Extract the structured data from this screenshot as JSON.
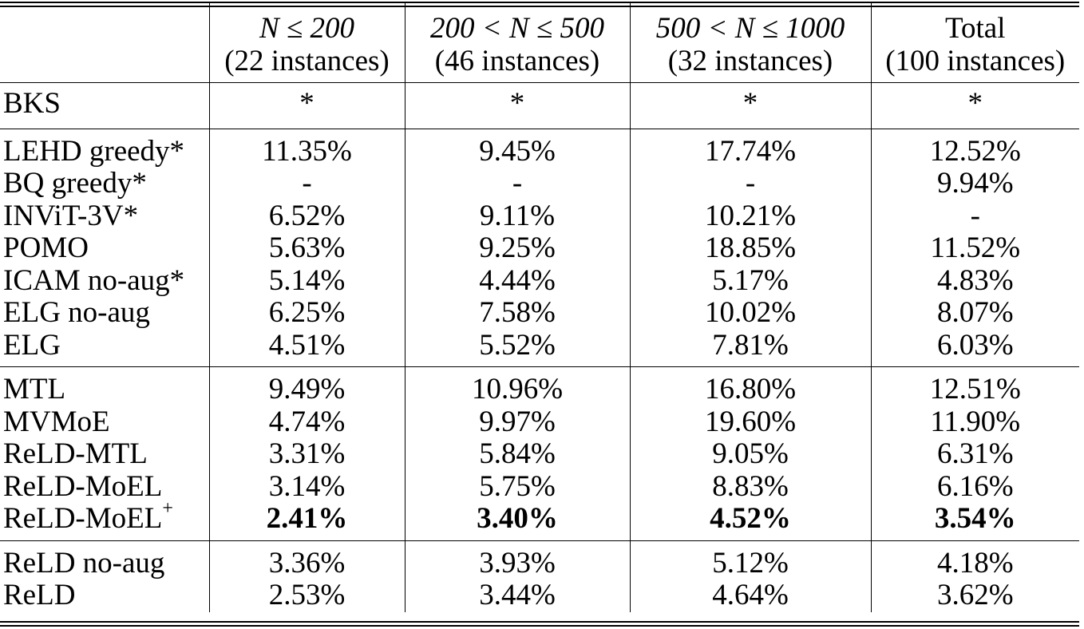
{
  "header": {
    "col1": {
      "line1": "N ≤ 200",
      "line2": "(22 instances)"
    },
    "col2": {
      "line1": "200 < N ≤ 500",
      "line2": "(46 instances)"
    },
    "col3": {
      "line1": "500 < N ≤ 1000",
      "line2": "(32 instances)"
    },
    "col4": {
      "line1": "Total",
      "line2": "(100 instances)"
    }
  },
  "bks": {
    "method": "BKS",
    "values": [
      "*",
      "*",
      "*",
      "*"
    ]
  },
  "group1": [
    {
      "method": "LEHD greedy*",
      "values": [
        "11.35%",
        "9.45%",
        "17.74%",
        "12.52%"
      ]
    },
    {
      "method": "BQ greedy*",
      "values": [
        "-",
        "-",
        "-",
        "9.94%"
      ]
    },
    {
      "method": "INViT-3V*",
      "values": [
        "6.52%",
        "9.11%",
        "10.21%",
        "-"
      ]
    },
    {
      "method": "POMO",
      "values": [
        "5.63%",
        "9.25%",
        "18.85%",
        "11.52%"
      ]
    },
    {
      "method": "ICAM no-aug*",
      "values": [
        "5.14%",
        "4.44%",
        "5.17%",
        "4.83%"
      ]
    },
    {
      "method": "ELG no-aug",
      "values": [
        "6.25%",
        "7.58%",
        "10.02%",
        "8.07%"
      ]
    },
    {
      "method": "ELG",
      "values": [
        "4.51%",
        "5.52%",
        "7.81%",
        "6.03%"
      ]
    }
  ],
  "group2": [
    {
      "method": "MTL",
      "values": [
        "9.49%",
        "10.96%",
        "16.80%",
        "12.51%"
      ]
    },
    {
      "method": "MVMoE",
      "values": [
        "4.74%",
        "9.97%",
        "19.60%",
        "11.90%"
      ]
    },
    {
      "method": "ReLD-MTL",
      "values": [
        "3.31%",
        "5.84%",
        "9.05%",
        "6.31%"
      ]
    },
    {
      "method": "ReLD-MoEL",
      "values": [
        "3.14%",
        "5.75%",
        "8.83%",
        "6.16%"
      ]
    },
    {
      "method": "ReLD-MoEL",
      "sup": "+",
      "values": [
        "2.41%",
        "3.40%",
        "4.52%",
        "3.54%"
      ]
    }
  ],
  "group3": [
    {
      "method": "ReLD no-aug",
      "values": [
        "3.36%",
        "3.93%",
        "5.12%",
        "4.18%"
      ]
    },
    {
      "method": "ReLD",
      "values": [
        "2.53%",
        "3.44%",
        "4.64%",
        "3.62%"
      ]
    }
  ]
}
